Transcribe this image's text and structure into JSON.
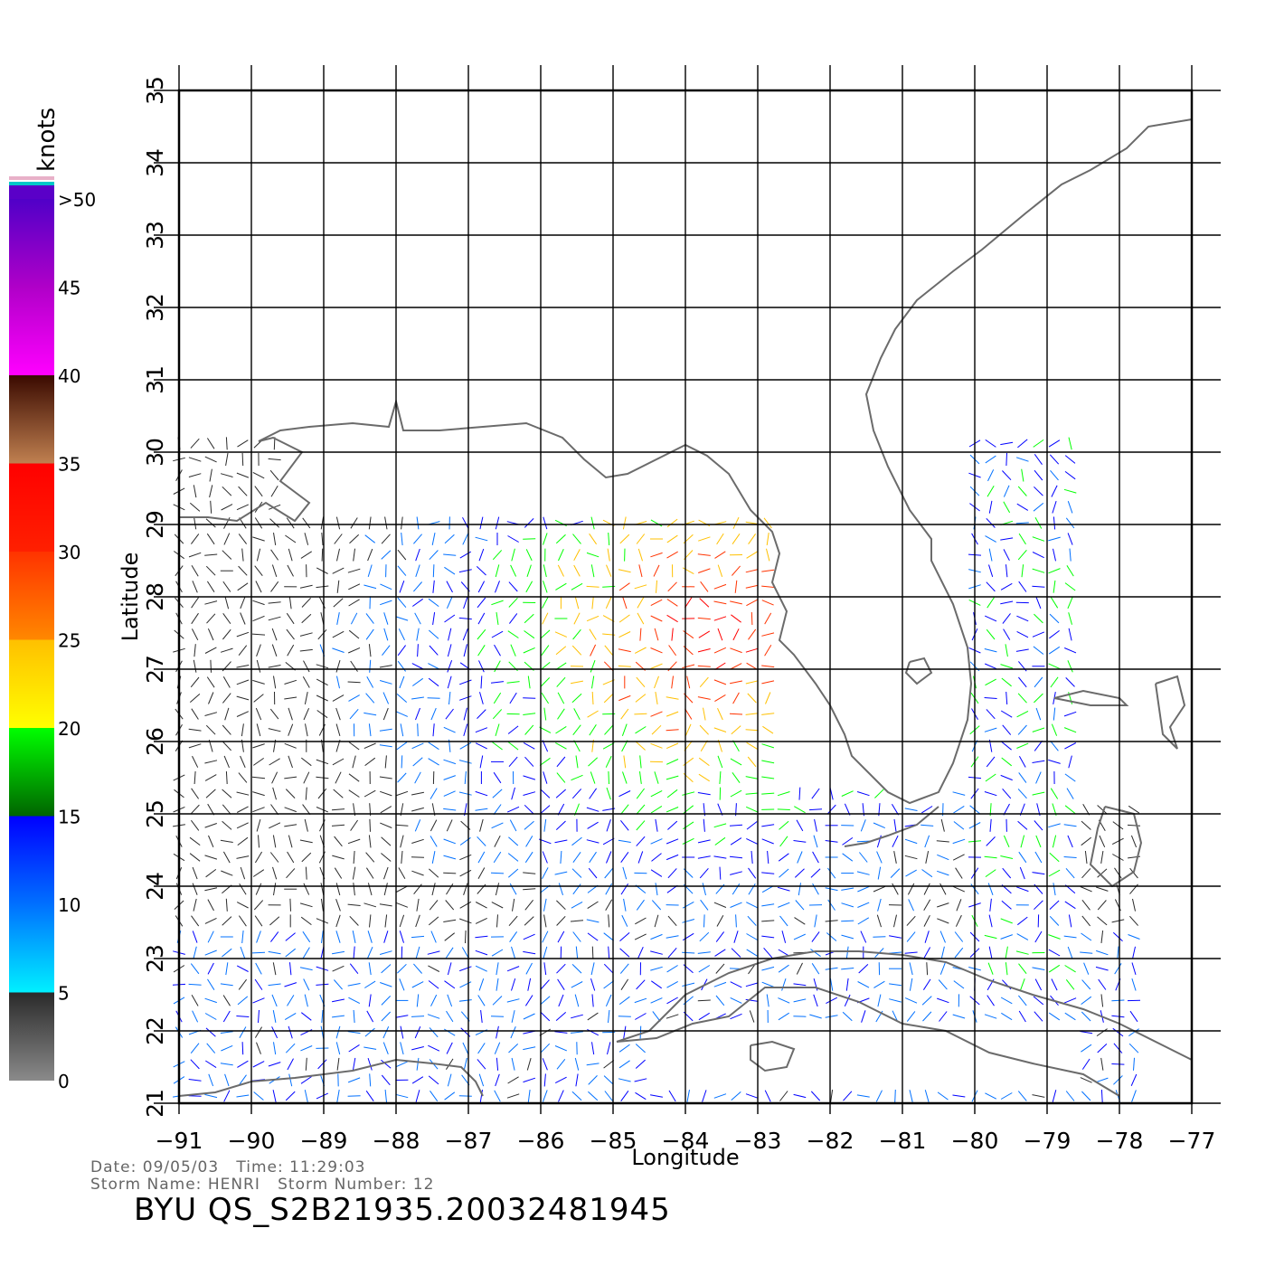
{
  "map": {
    "lon_range": [
      -91,
      -77
    ],
    "lat_range": [
      21,
      35
    ],
    "lon_ticks": [
      "-91",
      "-90",
      "-89",
      "-88",
      "-87",
      "-86",
      "-85",
      "-84",
      "-83",
      "-82",
      "-81",
      "-80",
      "-79",
      "-78",
      "-77"
    ],
    "lat_ticks": [
      "21",
      "22",
      "23",
      "24",
      "25",
      "26",
      "27",
      "28",
      "29",
      "30",
      "31",
      "32",
      "33",
      "34",
      "35"
    ],
    "xlabel": "Longitude",
    "ylabel": "Latitude",
    "grid": true,
    "coast_color": "#6b6b6b",
    "region": "Gulf of Mexico / Florida / Cuba / Bahamas"
  },
  "colorbar": {
    "unit_label": "knots",
    "bins": [
      {
        "label": "0",
        "from": 0,
        "to": 5,
        "colors": [
          "#8a8a8a",
          "#2a2a2a"
        ]
      },
      {
        "label": "5",
        "from": 5,
        "to": 10,
        "colors": [
          "#00f0ff",
          "#0070ff"
        ]
      },
      {
        "label": "10",
        "from": 10,
        "to": 15,
        "colors": [
          "#0070ff",
          "#0000ff"
        ]
      },
      {
        "label": "15",
        "from": 15,
        "to": 20,
        "colors": [
          "#006400",
          "#00ff00"
        ]
      },
      {
        "label": "20",
        "from": 20,
        "to": 25,
        "colors": [
          "#ffff00",
          "#ffc000"
        ]
      },
      {
        "label": "25",
        "from": 25,
        "to": 30,
        "colors": [
          "#ff8800",
          "#ff3300"
        ]
      },
      {
        "label": "30",
        "from": 30,
        "to": 35,
        "colors": [
          "#ff2000",
          "#ff0000"
        ]
      },
      {
        "label": "35",
        "from": 35,
        "to": 40,
        "colors": [
          "#c08050",
          "#3a0a00"
        ]
      },
      {
        "label": "40",
        "from": 40,
        "to": 45,
        "colors": [
          "#ff00ff",
          "#b000c8"
        ]
      },
      {
        "label": "45",
        "from": 45,
        "to": 50,
        "colors": [
          "#b000c8",
          "#5000c8"
        ]
      },
      {
        "label": ">50",
        "from": 50,
        "to": 55,
        "colors": [
          "#5a00c8",
          "#5a00c8"
        ]
      }
    ],
    "extra_stripe_colors": [
      "#00c8c8",
      "#e8b0c8"
    ]
  },
  "footer": {
    "date_label": "Date:",
    "date": "09/05/03",
    "time_label": "Time:",
    "time": "11:29:03",
    "storm_name_label": "Storm Name:",
    "storm_name": "HENRI",
    "storm_number_label": "Storm Number:",
    "storm_number": "12",
    "title": "BYU QS_S2B21935.20032481945"
  }
}
